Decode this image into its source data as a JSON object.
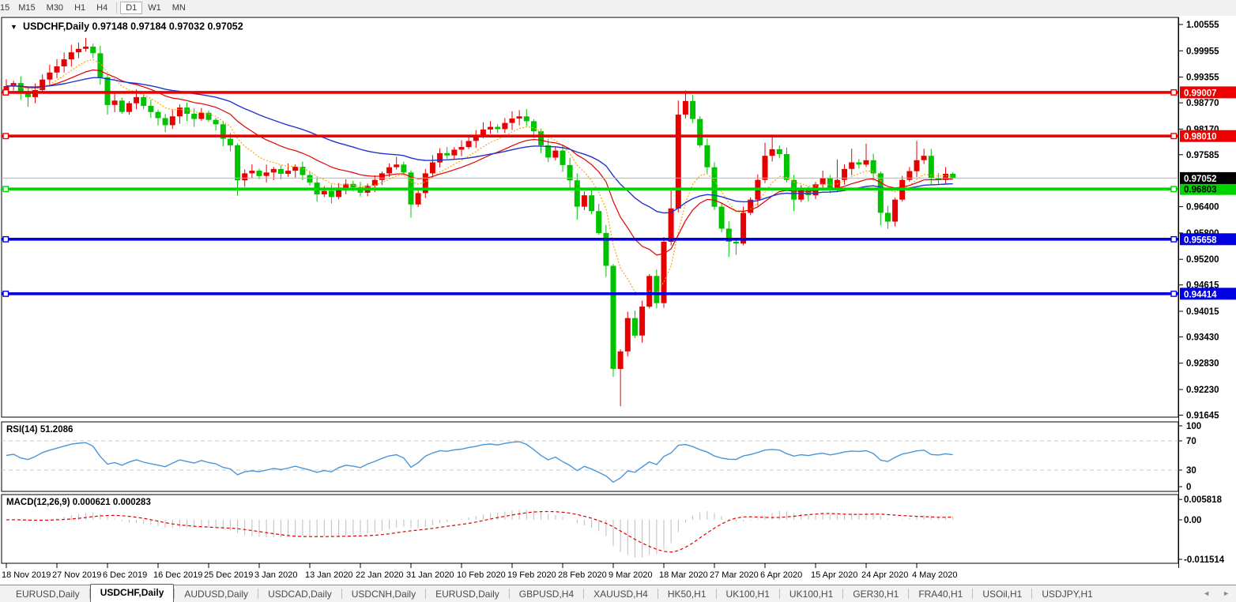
{
  "toolbar": {
    "partial_label": "15",
    "items": [
      {
        "label": "M15",
        "active": false
      },
      {
        "label": "M30",
        "active": false
      },
      {
        "label": "H1",
        "active": false
      },
      {
        "label": "H4",
        "active": false
      },
      {
        "label": "D1",
        "active": true
      },
      {
        "label": "W1",
        "active": false
      },
      {
        "label": "MN",
        "active": false
      }
    ]
  },
  "header": {
    "dropdown_icon": "▼",
    "symbol": "USDCHF,Daily",
    "open": "0.97148",
    "high": "0.97184",
    "low": "0.97032",
    "close": "0.97052"
  },
  "colors": {
    "up": "#e60000",
    "down": "#00c300",
    "ma_fast": "#ffa500",
    "ma_mid": "#e00000",
    "ma_slow": "#2233cc",
    "hline_red": "#ee0000",
    "hline_green": "#00d400",
    "hline_blue": "#0000e0",
    "price_line": "#b4b4b4",
    "price_badge_bg": "#000000",
    "rsi_line": "#4a96d8",
    "rsi_level_line": "#c9c9c9",
    "macd_hist": "#bcbcbc",
    "macd_signal": "#e00000",
    "pane_border": "#000000"
  },
  "chart_data": {
    "type": "candlestick",
    "symbol": "USDCHF",
    "period": "Daily",
    "note": "red body = up day, green body = down day",
    "first_open": 0.9905,
    "closes": [
      0.9915,
      0.9922,
      0.99,
      0.989,
      0.9906,
      0.993,
      0.9946,
      0.996,
      0.9976,
      0.9992,
      1.0,
      1.0005,
      0.999,
      0.9935,
      0.9872,
      0.9882,
      0.9856,
      0.9876,
      0.989,
      0.987,
      0.9856,
      0.9842,
      0.9826,
      0.9846,
      0.9866,
      0.9852,
      0.984,
      0.9854,
      0.9838,
      0.9828,
      0.9795,
      0.978,
      0.97,
      0.9716,
      0.9722,
      0.971,
      0.9718,
      0.9726,
      0.9715,
      0.9722,
      0.9731,
      0.9712,
      0.9695,
      0.9668,
      0.9676,
      0.9662,
      0.9681,
      0.9692,
      0.9684,
      0.9672,
      0.9688,
      0.9701,
      0.9716,
      0.973,
      0.9736,
      0.9718,
      0.9645,
      0.9671,
      0.9716,
      0.9741,
      0.9762,
      0.9757,
      0.977,
      0.9776,
      0.979,
      0.9801,
      0.9816,
      0.9822,
      0.9817,
      0.9831,
      0.9841,
      0.9846,
      0.9835,
      0.9812,
      0.978,
      0.9752,
      0.9768,
      0.9735,
      0.97,
      0.964,
      0.9666,
      0.963,
      0.958,
      0.9505,
      0.927,
      0.931,
      0.9386,
      0.9346,
      0.9412,
      0.9482,
      0.942,
      0.956,
      0.9636,
      0.985,
      0.9881,
      0.984,
      0.978,
      0.973,
      0.964,
      0.959,
      0.956,
      0.9556,
      0.9626,
      0.9656,
      0.9701,
      0.9756,
      0.9771,
      0.976,
      0.9701,
      0.9656,
      0.9681,
      0.9666,
      0.9691,
      0.9706,
      0.9681,
      0.9701,
      0.9726,
      0.9741,
      0.9736,
      0.9746,
      0.9716,
      0.9626,
      0.9606,
      0.9656,
      0.9701,
      0.9721,
      0.9746,
      0.9756,
      0.9706,
      0.9701,
      0.9715,
      0.9705
    ],
    "wicks": {
      "3": {
        "l": 0.9868
      },
      "11": {
        "h": 1.0025
      },
      "14": {
        "l": 0.985
      },
      "32": {
        "l": 0.9665
      },
      "56": {
        "l": 0.9615
      },
      "79": {
        "l": 0.961
      },
      "83": {
        "l": 0.948
      },
      "84": {
        "l": 0.9252
      },
      "85": {
        "l": 0.9185
      },
      "92": {
        "h": 0.968
      },
      "93": {
        "h": 0.9882
      },
      "94": {
        "h": 0.9905
      },
      "95": {
        "h": 0.9895
      },
      "100": {
        "l": 0.9525
      },
      "101": {
        "l": 0.953
      },
      "105": {
        "h": 0.9786
      },
      "106": {
        "h": 0.9802
      },
      "109": {
        "l": 0.963
      },
      "115": {
        "h": 0.9748
      },
      "117": {
        "h": 0.9772
      },
      "119": {
        "h": 0.9784
      },
      "121": {
        "l": 0.9597
      },
      "126": {
        "h": 0.979
      },
      "131": {
        "h": 0.97184,
        "l": 0.97032
      }
    },
    "moving_averages": [
      {
        "name": "fast",
        "period": 8,
        "style": "dotted"
      },
      {
        "name": "mid",
        "period": 18,
        "style": "solid"
      },
      {
        "name": "slow",
        "period": 40,
        "style": "solid"
      }
    ],
    "dates": [
      "18 Nov 2019",
      "27 Nov 2019",
      "6 Dec 2019",
      "16 Dec 2019",
      "25 Dec 2019",
      "3 Jan 2020",
      "13 Jan 2020",
      "22 Jan 2020",
      "31 Jan 2020",
      "10 Feb 2020",
      "19 Feb 2020",
      "28 Feb 2020",
      "9 Mar 2020",
      "18 Mar 2020",
      "27 Mar 2020",
      "6 Apr 2020",
      "15 Apr 2020",
      "24 Apr 2020",
      "4 May 2020"
    ],
    "y_ticks": [
      1.00555,
      0.99955,
      0.99355,
      0.9877,
      0.9817,
      0.97585,
      0.964,
      0.958,
      0.952,
      0.94615,
      0.94015,
      0.9343,
      0.9283,
      0.9223,
      0.91645
    ],
    "ylim": [
      0.91645,
      1.00555
    ],
    "hlines": [
      {
        "price": 0.99007,
        "color": "red",
        "label": "0.99007"
      },
      {
        "price": 0.9801,
        "color": "red",
        "label": "0.98010"
      },
      {
        "price": 0.96803,
        "color": "green",
        "label": "0.96803"
      },
      {
        "price": 0.95658,
        "color": "blue",
        "label": "0.95658"
      },
      {
        "price": 0.94414,
        "color": "blue",
        "label": "0.94414"
      }
    ],
    "current_price": {
      "value": 0.97052,
      "label": "0.97052"
    },
    "rsi": {
      "label": "RSI(14)",
      "value": "51.2086",
      "period": 14,
      "upper_level": 70,
      "lower_level": 30,
      "axis_labels": [
        {
          "text": "100",
          "value": 100
        },
        {
          "text": "70",
          "value": 70
        },
        {
          "text": "30",
          "value": 30
        },
        {
          "text": "0",
          "value": 0
        }
      ]
    },
    "macd": {
      "label": "MACD(12,26,9)",
      "value_macd": "0.000621",
      "value_signal": "0.000283",
      "fast": 12,
      "slow": 26,
      "signal_period": 9,
      "axis_labels": [
        {
          "text": "0.005818",
          "value": 0.005818
        },
        {
          "text": "0.00",
          "value": 0
        },
        {
          "text": "-0.011514",
          "value": -0.011514
        }
      ]
    }
  },
  "tabbar": {
    "left_arrow": "◄",
    "right_arrow": "►",
    "tabs": [
      {
        "label": "EURUSD,Daily",
        "active": false
      },
      {
        "label": "USDCHF,Daily",
        "active": true
      },
      {
        "label": "AUDUSD,Daily",
        "active": false
      },
      {
        "label": "USDCAD,Daily",
        "active": false
      },
      {
        "label": "USDCNH,Daily",
        "active": false
      },
      {
        "label": "EURUSD,Daily",
        "active": false
      },
      {
        "label": "GBPUSD,H4",
        "active": false
      },
      {
        "label": "XAUUSD,H4",
        "active": false
      },
      {
        "label": "HK50,H1",
        "active": false
      },
      {
        "label": "UK100,H1",
        "active": false
      },
      {
        "label": "UK100,H1",
        "active": false
      },
      {
        "label": "GER30,H1",
        "active": false
      },
      {
        "label": "FRA40,H1",
        "active": false
      },
      {
        "label": "USOil,H1",
        "active": false
      },
      {
        "label": "USDJPY,H1",
        "active": false
      }
    ]
  }
}
